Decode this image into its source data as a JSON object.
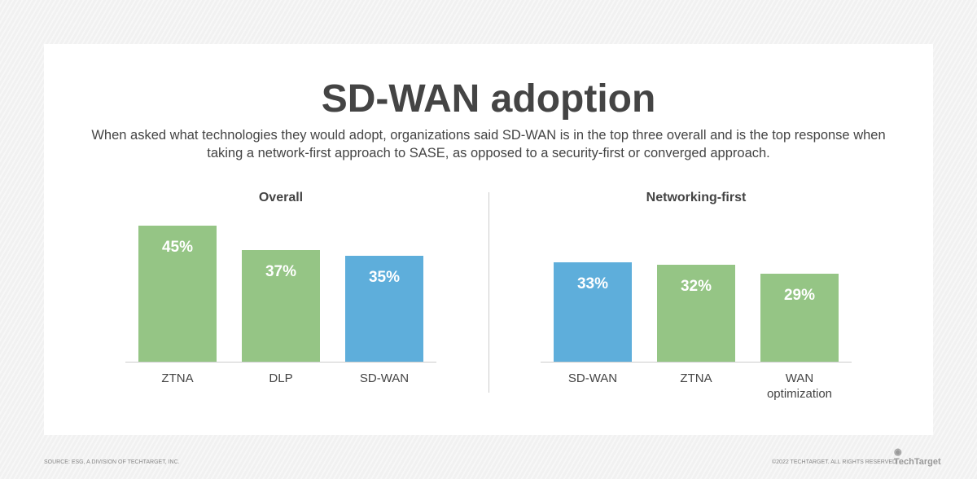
{
  "title": "SD-WAN adoption",
  "subtitle": "When asked what technologies they would adopt, organizations said SD-WAN is in the top three overall and is the top response when taking a network-first approach to SASE, as opposed to a security-first or converged approach.",
  "colors": {
    "green": "#95c585",
    "blue": "#5eaedb"
  },
  "chart_data": [
    {
      "type": "bar",
      "title": "Overall",
      "categories": [
        "ZTNA",
        "DLP",
        "SD-WAN"
      ],
      "values": [
        45,
        37,
        35
      ],
      "labels": [
        "45%",
        "37%",
        "35%"
      ],
      "highlight": "SD-WAN",
      "ylim": [
        0,
        50
      ]
    },
    {
      "type": "bar",
      "title": "Networking-first",
      "categories": [
        "SD-WAN",
        "ZTNA",
        "WAN optimization"
      ],
      "values": [
        33,
        32,
        29
      ],
      "labels": [
        "33%",
        "32%",
        "29%"
      ],
      "highlight": "SD-WAN",
      "ylim": [
        0,
        50
      ]
    }
  ],
  "footer": {
    "source": "Source: ESG, a division of TechTarget, Inc.",
    "copyright": "©2022 TechTarget. All rights reserved",
    "logo": "TechTarget"
  }
}
